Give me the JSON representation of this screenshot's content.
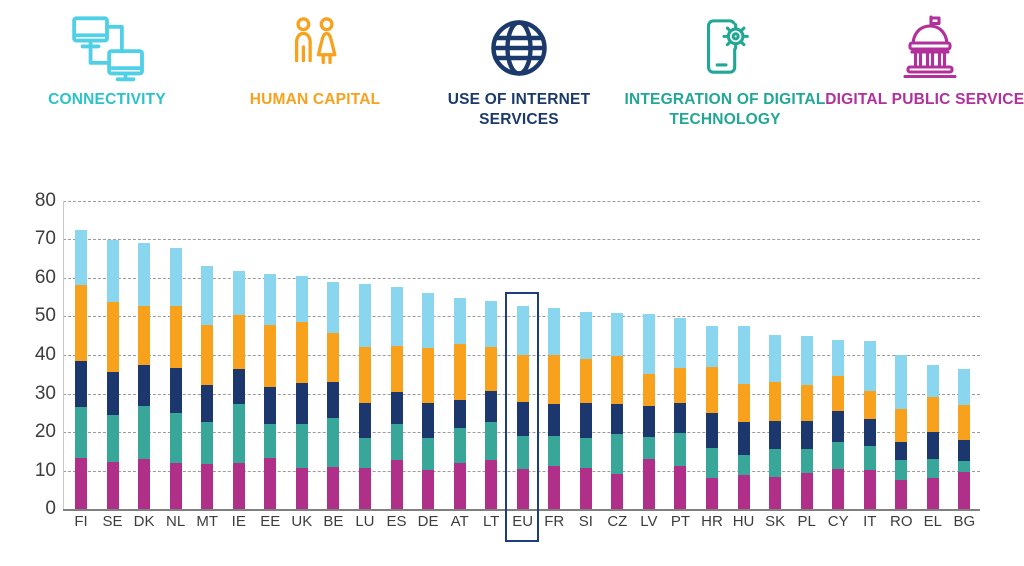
{
  "legend": {
    "items": [
      {
        "label": "CONNECTIVITY",
        "icon": "connectivity-network-icon",
        "label_color": "#2cc2c9",
        "icon_color": "#4fd0e6"
      },
      {
        "label": "HUMAN CAPITAL",
        "icon": "human-capital-people-icon",
        "label_color": "#f8a11d",
        "icon_color": "#f8a11d"
      },
      {
        "label": "USE OF INTERNET SERVICES",
        "icon": "internet-globe-icon",
        "label_color": "#1b3a6b",
        "icon_color": "#1b3a6b"
      },
      {
        "label": "INTEGRATION OF DIGITAL TECHNOLOGY",
        "icon": "phone-gear-icon",
        "label_color": "#21a795",
        "icon_color": "#21a795"
      },
      {
        "label": "DIGITAL PUBLIC SERVICES",
        "icon": "government-building-icon",
        "label_color": "#b2309b",
        "icon_color": "#b2309b"
      }
    ]
  },
  "chart_data": {
    "type": "bar",
    "stacked": true,
    "title": "",
    "xlabel": "",
    "ylabel": "",
    "ylim": [
      0,
      80
    ],
    "yticks": [
      0,
      10,
      20,
      30,
      40,
      50,
      60,
      70,
      80
    ],
    "grid": "dashed horizontal",
    "legend_position": "top",
    "highlight_category": "EU",
    "categories": [
      "FI",
      "SE",
      "DK",
      "NL",
      "MT",
      "IE",
      "EE",
      "UK",
      "BE",
      "LU",
      "ES",
      "DE",
      "AT",
      "LT",
      "EU",
      "FR",
      "SI",
      "CZ",
      "LV",
      "PT",
      "HR",
      "HU",
      "SK",
      "PL",
      "CY",
      "IT",
      "RO",
      "EL",
      "BG"
    ],
    "totals": [
      72.3,
      69.7,
      69.1,
      67.7,
      63.1,
      61.8,
      61.1,
      60.4,
      58.9,
      58.3,
      57.5,
      56.1,
      54.7,
      53.9,
      52.6,
      52.2,
      51.2,
      50.8,
      50.7,
      49.6,
      47.6,
      47.5,
      45.2,
      45.0,
      43.8,
      43.6,
      40.0,
      37.3,
      36.4
    ],
    "stack_order_note": "series listed bottom-to-top",
    "series": [
      {
        "name": "DIGITAL PUBLIC SERVICES",
        "color": "#b03089",
        "values": [
          13.2,
          12.2,
          13.0,
          12.1,
          11.7,
          11.9,
          13.4,
          10.8,
          11.0,
          10.8,
          12.8,
          10.2,
          11.9,
          12.7,
          10.5,
          11.3,
          10.8,
          9.1,
          13.0,
          11.2,
          8.2,
          8.9,
          8.3,
          9.5,
          10.4,
          10.3,
          7.6,
          8.0,
          9.6
        ]
      },
      {
        "name": "INTEGRATION OF DIGITAL TECHNOLOGY",
        "color": "#38a79a",
        "values": [
          13.4,
          12.2,
          13.9,
          12.9,
          11.0,
          15.3,
          8.6,
          11.2,
          12.6,
          7.6,
          9.2,
          8.2,
          9.1,
          9.8,
          8.4,
          7.7,
          7.6,
          10.4,
          5.7,
          8.5,
          7.8,
          5.3,
          7.2,
          6.2,
          7.1,
          6.0,
          5.2,
          5.0,
          2.9
        ]
      },
      {
        "name": "USE OF INTERNET SERVICES",
        "color": "#1b376e",
        "values": [
          11.8,
          11.3,
          10.5,
          11.5,
          9.5,
          9.1,
          9.6,
          10.8,
          9.5,
          9.1,
          8.5,
          9.1,
          7.3,
          8.2,
          8.8,
          8.3,
          9.1,
          7.7,
          8.0,
          7.8,
          8.9,
          8.3,
          7.4,
          7.3,
          8.1,
          7.2,
          4.7,
          7.1,
          5.5
        ]
      },
      {
        "name": "HUMAN CAPITAL",
        "color": "#f8a11d",
        "values": [
          19.7,
          18.1,
          15.2,
          16.2,
          15.6,
          14.1,
          16.3,
          15.8,
          12.7,
          14.7,
          11.8,
          14.2,
          14.5,
          11.3,
          12.4,
          12.7,
          11.4,
          12.6,
          8.5,
          9.2,
          12.1,
          10.0,
          10.1,
          9.2,
          9.0,
          7.1,
          8.5,
          8.9,
          9.0
        ]
      },
      {
        "name": "CONNECTIVITY",
        "color": "#8ad6ee",
        "values": [
          14.2,
          15.9,
          16.5,
          15.0,
          15.3,
          11.4,
          13.2,
          11.8,
          13.1,
          16.1,
          15.2,
          14.4,
          11.9,
          11.9,
          12.5,
          12.2,
          12.3,
          11.0,
          15.5,
          12.9,
          10.6,
          15.0,
          12.2,
          12.8,
          9.2,
          13.0,
          14.0,
          8.3,
          9.4
        ]
      }
    ],
    "colors": {
      "grid": "#9b9b9b",
      "x_axis": "#808080",
      "y_axis": "#c9c9c9",
      "tick_label": "#3d3d3d",
      "highlight_box": "#1c3e7c"
    }
  }
}
